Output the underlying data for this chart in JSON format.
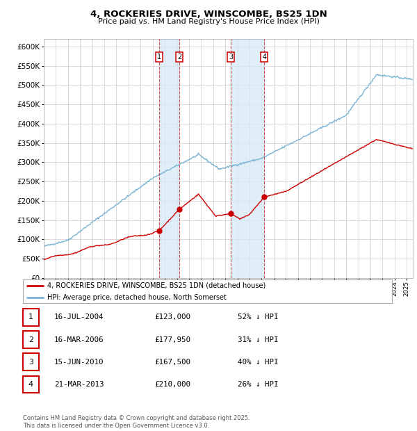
{
  "title": "4, ROCKERIES DRIVE, WINSCOMBE, BS25 1DN",
  "subtitle": "Price paid vs. HM Land Registry's House Price Index (HPI)",
  "transactions": [
    {
      "num": 1,
      "date": "16-JUL-2004",
      "price": 123000,
      "price_str": "£123,000",
      "pct": "52% ↓ HPI",
      "x_year": 2004.54
    },
    {
      "num": 2,
      "date": "16-MAR-2006",
      "price": 177950,
      "price_str": "£177,950",
      "pct": "31% ↓ HPI",
      "x_year": 2006.21
    },
    {
      "num": 3,
      "date": "15-JUN-2010",
      "price": 167500,
      "price_str": "£167,500",
      "pct": "40% ↓ HPI",
      "x_year": 2010.46
    },
    {
      "num": 4,
      "date": "21-MAR-2013",
      "price": 210000,
      "price_str": "£210,000",
      "pct": "26% ↓ HPI",
      "x_year": 2013.22
    }
  ],
  "hpi_line_color": "#7ab3d4",
  "price_line_color": "#cc0000",
  "shade_color": "#d8eaf5",
  "grid_color": "#cccccc",
  "background_color": "#ffffff",
  "legend_label_price": "4, ROCKERIES DRIVE, WINSCOMBE, BS25 1DN (detached house)",
  "legend_label_hpi": "HPI: Average price, detached house, North Somerset",
  "footer": "Contains HM Land Registry data © Crown copyright and database right 2025.\nThis data is licensed under the Open Government Licence v3.0.",
  "ylim": [
    0,
    620000
  ],
  "xlim_start": 1995,
  "xlim_end": 2025.5
}
